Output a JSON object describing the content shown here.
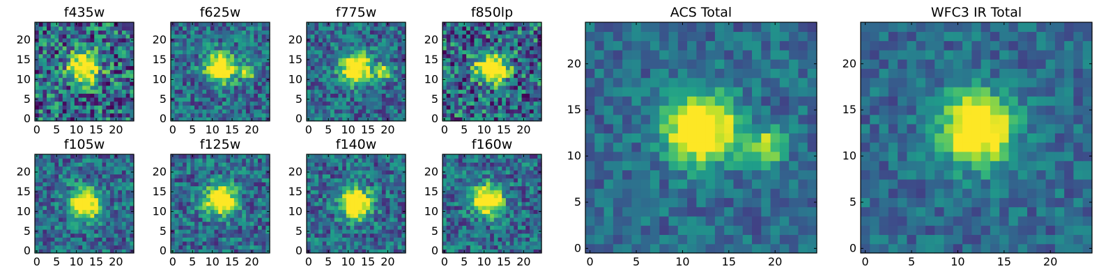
{
  "chart_data": [
    {
      "type": "heatmap",
      "title": "f435w",
      "colormap": "viridis",
      "grid_size": 25,
      "blob_centers": [
        [
          12,
          13
        ]
      ],
      "noise": "high",
      "x_ticks": [
        "0",
        "5",
        "10",
        "15",
        "20"
      ],
      "y_ticks": [
        "0",
        "5",
        "10",
        "15",
        "20"
      ],
      "xlim": [
        -0.5,
        24.5
      ],
      "ylim": [
        -0.5,
        24.5
      ]
    },
    {
      "type": "heatmap",
      "title": "f625w",
      "colormap": "viridis",
      "grid_size": 25,
      "blob_centers": [
        [
          12,
          13
        ],
        [
          19,
          12
        ]
      ],
      "noise": "medium",
      "x_ticks": [
        "0",
        "5",
        "10",
        "15",
        "20"
      ],
      "y_ticks": [
        "0",
        "5",
        "10",
        "15",
        "20"
      ],
      "xlim": [
        -0.5,
        24.5
      ],
      "ylim": [
        -0.5,
        24.5
      ]
    },
    {
      "type": "heatmap",
      "title": "f775w",
      "colormap": "viridis",
      "grid_size": 25,
      "blob_centers": [
        [
          12,
          13
        ],
        [
          19,
          12
        ]
      ],
      "noise": "medium",
      "x_ticks": [
        "0",
        "5",
        "10",
        "15",
        "20"
      ],
      "y_ticks": [
        "0",
        "5",
        "10",
        "15",
        "20"
      ],
      "xlim": [
        -0.5,
        24.5
      ],
      "ylim": [
        -0.5,
        24.5
      ]
    },
    {
      "type": "heatmap",
      "title": "f850lp",
      "colormap": "viridis",
      "grid_size": 25,
      "blob_centers": [
        [
          12,
          13
        ]
      ],
      "noise": "high",
      "x_ticks": [
        "0",
        "5",
        "10",
        "15",
        "20"
      ],
      "y_ticks": [
        "0",
        "5",
        "10",
        "15",
        "20"
      ],
      "xlim": [
        -0.5,
        24.5
      ],
      "ylim": [
        -0.5,
        24.5
      ]
    },
    {
      "type": "heatmap",
      "title": "f105w",
      "colormap": "viridis",
      "grid_size": 25,
      "blob_centers": [
        [
          12,
          12
        ]
      ],
      "noise": "medium",
      "x_ticks": [
        "0",
        "5",
        "10",
        "15",
        "20"
      ],
      "y_ticks": [
        "0",
        "5",
        "10",
        "15",
        "20"
      ],
      "xlim": [
        -0.5,
        24.5
      ],
      "ylim": [
        -0.5,
        24.5
      ]
    },
    {
      "type": "heatmap",
      "title": "f125w",
      "colormap": "viridis",
      "grid_size": 25,
      "blob_centers": [
        [
          12,
          13
        ]
      ],
      "noise": "medium",
      "x_ticks": [
        "0",
        "5",
        "10",
        "15",
        "20"
      ],
      "y_ticks": [
        "0",
        "5",
        "10",
        "15",
        "20"
      ],
      "xlim": [
        -0.5,
        24.5
      ],
      "ylim": [
        -0.5,
        24.5
      ]
    },
    {
      "type": "heatmap",
      "title": "f140w",
      "colormap": "viridis",
      "grid_size": 25,
      "blob_centers": [
        [
          12,
          12
        ]
      ],
      "noise": "medium",
      "x_ticks": [
        "0",
        "5",
        "10",
        "15",
        "20"
      ],
      "y_ticks": [
        "0",
        "5",
        "10",
        "15",
        "20"
      ],
      "xlim": [
        -0.5,
        24.5
      ],
      "ylim": [
        -0.5,
        24.5
      ]
    },
    {
      "type": "heatmap",
      "title": "f160w",
      "colormap": "viridis",
      "grid_size": 25,
      "blob_centers": [
        [
          11,
          13
        ]
      ],
      "noise": "medium",
      "x_ticks": [
        "0",
        "5",
        "10",
        "15",
        "20"
      ],
      "y_ticks": [
        "0",
        "5",
        "10",
        "15",
        "20"
      ],
      "xlim": [
        -0.5,
        24.5
      ],
      "ylim": [
        -0.5,
        24.5
      ]
    },
    {
      "type": "heatmap",
      "title": "ACS Total",
      "colormap": "viridis",
      "grid_size": 25,
      "blob_centers": [
        [
          12,
          13
        ],
        [
          19,
          11
        ]
      ],
      "noise": "low",
      "x_ticks": [
        "0",
        "5",
        "10",
        "15",
        "20"
      ],
      "y_ticks": [
        "0",
        "5",
        "10",
        "15",
        "20"
      ],
      "xlim": [
        -0.5,
        24.5
      ],
      "ylim": [
        -0.5,
        24.5
      ]
    },
    {
      "type": "heatmap",
      "title": "WFC3 IR Total",
      "colormap": "viridis",
      "grid_size": 25,
      "blob_centers": [
        [
          12,
          13
        ]
      ],
      "noise": "low",
      "x_ticks": [
        "0",
        "5",
        "10",
        "15",
        "20"
      ],
      "y_ticks": [
        "0",
        "5",
        "10",
        "15",
        "20"
      ],
      "xlim": [
        -0.5,
        24.5
      ],
      "ylim": [
        -0.5,
        24.5
      ]
    }
  ]
}
